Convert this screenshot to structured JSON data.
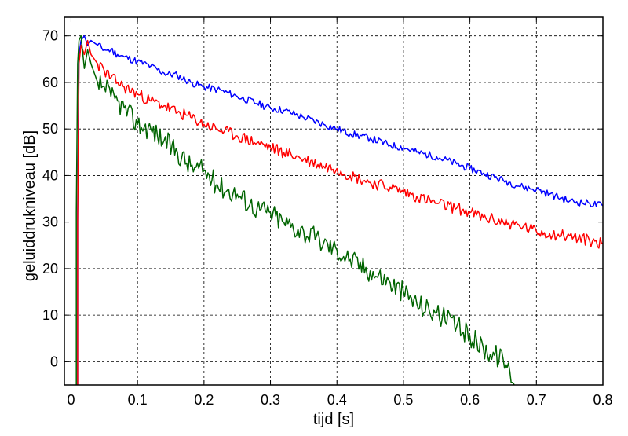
{
  "chart_data": {
    "type": "line",
    "title": "",
    "xlabel": "tijd  [s]",
    "ylabel": "geluiddrukniveau  [dB]",
    "xlim": [
      -0.01,
      0.8
    ],
    "ylim": [
      -5,
      74
    ],
    "xticks": [
      0,
      0.1,
      0.2,
      0.3,
      0.4,
      0.5,
      0.6,
      0.7,
      0.8
    ],
    "xtick_labels": [
      "0",
      "0.1",
      "0.2",
      "0.3",
      "0.4",
      "0.5",
      "0.6",
      "0.7",
      "0.8"
    ],
    "yticks": [
      0,
      10,
      20,
      30,
      40,
      50,
      60,
      70
    ],
    "ytick_labels": [
      "0",
      "10",
      "20",
      "30",
      "40",
      "50",
      "60",
      "70"
    ],
    "grid": true,
    "legend": "none",
    "colors": {
      "background": "#ffffff",
      "axes": "#000000",
      "grid": "#000000"
    },
    "series": [
      {
        "color": "#0000ff",
        "points": [
          [
            0.01,
            -5
          ],
          [
            0.01,
            32
          ],
          [
            0.012,
            66
          ],
          [
            0.015,
            69
          ],
          [
            0.02,
            70
          ],
          [
            0.025,
            68
          ],
          [
            0.03,
            69
          ],
          [
            0.04,
            68
          ],
          [
            0.05,
            67
          ],
          [
            0.06,
            67
          ],
          [
            0.07,
            66
          ],
          [
            0.08,
            65.5
          ],
          [
            0.1,
            64.5
          ],
          [
            0.12,
            63.5
          ],
          [
            0.14,
            62
          ],
          [
            0.16,
            61.5
          ],
          [
            0.18,
            60
          ],
          [
            0.2,
            59
          ],
          [
            0.22,
            58.5
          ],
          [
            0.25,
            57
          ],
          [
            0.28,
            55.5
          ],
          [
            0.3,
            54.5
          ],
          [
            0.32,
            54
          ],
          [
            0.35,
            52.5
          ],
          [
            0.38,
            51
          ],
          [
            0.4,
            50
          ],
          [
            0.42,
            49
          ],
          [
            0.45,
            48
          ],
          [
            0.48,
            46.5
          ],
          [
            0.5,
            46
          ],
          [
            0.52,
            45
          ],
          [
            0.55,
            44
          ],
          [
            0.58,
            42.5
          ],
          [
            0.6,
            41.5
          ],
          [
            0.62,
            40.5
          ],
          [
            0.65,
            39
          ],
          [
            0.68,
            37.5
          ],
          [
            0.7,
            37
          ],
          [
            0.72,
            36
          ],
          [
            0.75,
            34.5
          ],
          [
            0.78,
            34
          ],
          [
            0.8,
            33.5
          ]
        ]
      },
      {
        "color": "#ff0000",
        "points": [
          [
            0.01,
            -5
          ],
          [
            0.01,
            30
          ],
          [
            0.012,
            64
          ],
          [
            0.015,
            68
          ],
          [
            0.02,
            66
          ],
          [
            0.025,
            69
          ],
          [
            0.03,
            66
          ],
          [
            0.04,
            64
          ],
          [
            0.05,
            62.5
          ],
          [
            0.06,
            61
          ],
          [
            0.07,
            60
          ],
          [
            0.08,
            59
          ],
          [
            0.1,
            57.5
          ],
          [
            0.12,
            56
          ],
          [
            0.14,
            55
          ],
          [
            0.16,
            53.5
          ],
          [
            0.18,
            52.5
          ],
          [
            0.2,
            51
          ],
          [
            0.22,
            50
          ],
          [
            0.25,
            48.5
          ],
          [
            0.28,
            47
          ],
          [
            0.3,
            46
          ],
          [
            0.32,
            45
          ],
          [
            0.35,
            43.5
          ],
          [
            0.38,
            42
          ],
          [
            0.4,
            41.5
          ],
          [
            0.42,
            40
          ],
          [
            0.45,
            38.5
          ],
          [
            0.48,
            37.5
          ],
          [
            0.5,
            36.5
          ],
          [
            0.52,
            35.5
          ],
          [
            0.55,
            34
          ],
          [
            0.58,
            33
          ],
          [
            0.6,
            32
          ],
          [
            0.62,
            31
          ],
          [
            0.65,
            30
          ],
          [
            0.68,
            29
          ],
          [
            0.7,
            28
          ],
          [
            0.72,
            27.5
          ],
          [
            0.75,
            27
          ],
          [
            0.78,
            26
          ],
          [
            0.8,
            25.5
          ]
        ]
      },
      {
        "color": "#006400",
        "points": [
          [
            0.008,
            -5
          ],
          [
            0.008,
            32
          ],
          [
            0.01,
            64
          ],
          [
            0.012,
            69
          ],
          [
            0.015,
            70
          ],
          [
            0.02,
            63
          ],
          [
            0.025,
            67
          ],
          [
            0.03,
            64
          ],
          [
            0.04,
            60
          ],
          [
            0.05,
            59
          ],
          [
            0.06,
            57
          ],
          [
            0.07,
            56
          ],
          [
            0.08,
            54.5
          ],
          [
            0.1,
            51
          ],
          [
            0.12,
            50
          ],
          [
            0.14,
            47.5
          ],
          [
            0.16,
            45
          ],
          [
            0.18,
            42
          ],
          [
            0.2,
            41
          ],
          [
            0.22,
            38
          ],
          [
            0.25,
            36
          ],
          [
            0.28,
            33
          ],
          [
            0.3,
            32
          ],
          [
            0.32,
            30
          ],
          [
            0.35,
            28
          ],
          [
            0.38,
            25.5
          ],
          [
            0.4,
            24
          ],
          [
            0.42,
            22
          ],
          [
            0.45,
            19.5
          ],
          [
            0.48,
            17
          ],
          [
            0.5,
            15
          ],
          [
            0.52,
            12.5
          ],
          [
            0.55,
            10.5
          ],
          [
            0.58,
            7.5
          ],
          [
            0.6,
            5.5
          ],
          [
            0.62,
            3
          ],
          [
            0.65,
            0.5
          ],
          [
            0.66,
            -2
          ],
          [
            0.67,
            -5
          ]
        ]
      }
    ]
  }
}
